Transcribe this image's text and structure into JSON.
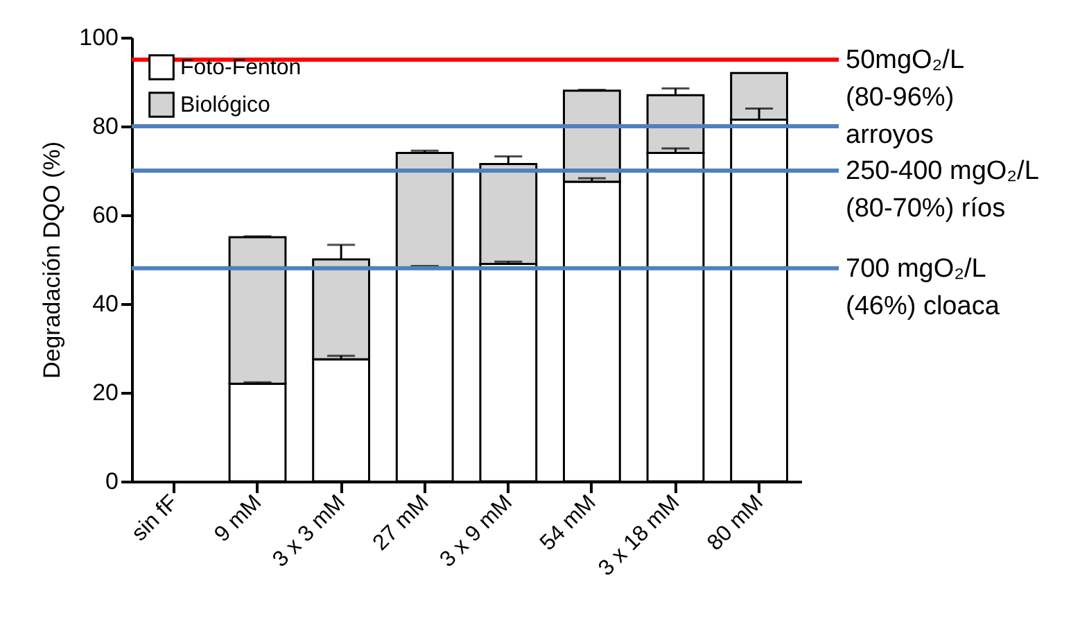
{
  "chart_data": {
    "type": "bar",
    "stacked": true,
    "ylabel": "Degradación DQO (%)",
    "categories": [
      "sin fF",
      "9 mM",
      "3 x 3 mM",
      "27 mM",
      "3 x 9 mM",
      "54 mM",
      "3 x 18 mM",
      "80 mM"
    ],
    "series": [
      {
        "name": "Foto-Fenton",
        "color": "#ffffff",
        "values": [
          null,
          22,
          27.5,
          48,
          49,
          67.5,
          74,
          81.5
        ],
        "errors": [
          null,
          0.3,
          0.8,
          0.5,
          0.5,
          0.8,
          1,
          2.5
        ]
      },
      {
        "name": "Biológico",
        "color": "#d3d3d3",
        "values": [
          null,
          33,
          22.5,
          26,
          22.5,
          20.5,
          13,
          10.5
        ],
        "errors": [
          null,
          0.2,
          3.3,
          0.5,
          1.7,
          0.2,
          1.5,
          null
        ]
      }
    ],
    "ylim": [
      0,
      100
    ],
    "yticks": [
      0,
      20,
      40,
      60,
      80,
      100
    ],
    "grid": false,
    "legend": "top left",
    "ref_lines": [
      {
        "axis": "y",
        "value": 95,
        "label": "50mgO₂/L (80-96%) arroyos",
        "color": "#ff0000"
      },
      {
        "axis": "y",
        "value": 80,
        "label": null,
        "color": "#4f81bd"
      },
      {
        "axis": "y",
        "value": 70,
        "label": "250-400 mgO₂/L (80-70%) ríos",
        "color": "#4f81bd"
      },
      {
        "axis": "y",
        "value": 48,
        "label": "700 mgO₂/L (46%) cloaca",
        "color": "#4f81bd"
      }
    ]
  }
}
